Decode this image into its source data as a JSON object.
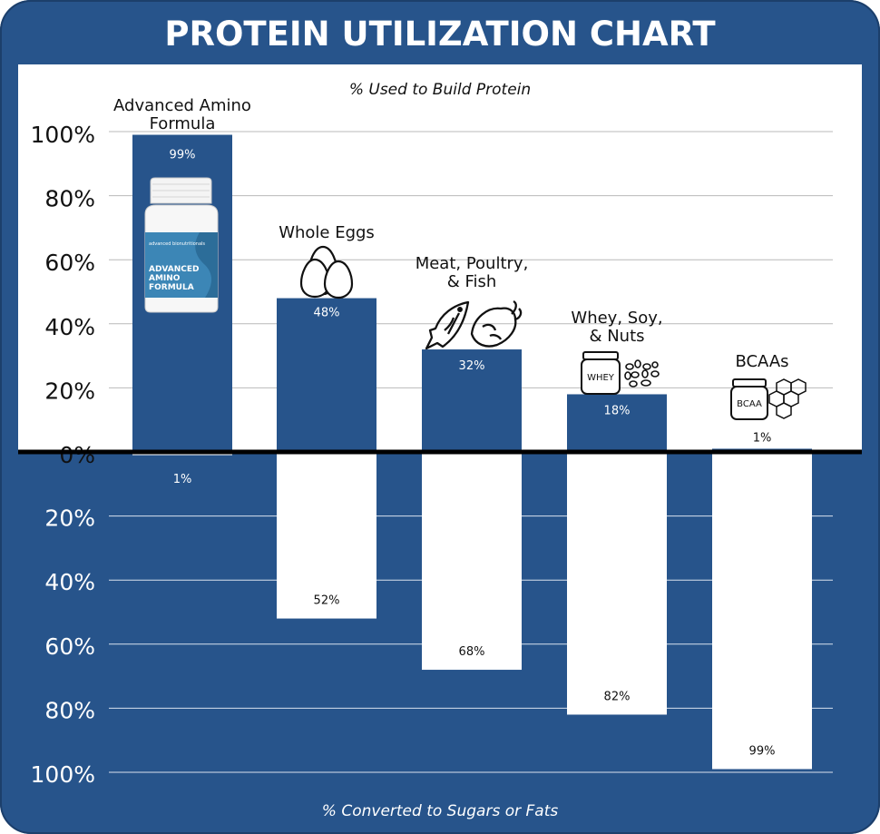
{
  "chart_data": {
    "type": "bar",
    "title": "PROTEIN UTILIZATION CHART",
    "upper_label": "% Used to Build Protein",
    "lower_label": "% Converted to Sugars or Fats",
    "categories": [
      {
        "lines": [
          "Advanced Amino",
          "Formula"
        ],
        "icon": "supplement-bottle-icon"
      },
      {
        "lines": [
          "Whole Eggs"
        ],
        "icon": "eggs-icon"
      },
      {
        "lines": [
          "Meat, Poultry,",
          "& Fish"
        ],
        "icon": "fish-and-chicken-icon"
      },
      {
        "lines": [
          "Whey, Soy,",
          "& Nuts"
        ],
        "icon": "whey-jar-and-nuts-icon"
      },
      {
        "lines": [
          "BCAAs"
        ],
        "icon": "bcaa-jar-icon"
      }
    ],
    "series": [
      {
        "values": [
          99,
          48,
          32,
          18,
          1
        ],
        "labels": [
          "99%",
          "48%",
          "32%",
          "18%",
          "1%"
        ]
      },
      {
        "values": [
          1,
          52,
          68,
          82,
          99
        ],
        "labels": [
          "1%",
          "52%",
          "68%",
          "82%",
          "99%"
        ]
      }
    ],
    "upper_ticks": [
      "0%",
      "20%",
      "40%",
      "60%",
      "80%",
      "100%"
    ],
    "lower_ticks": [
      "20%",
      "40%",
      "60%",
      "80%",
      "100%"
    ],
    "ylim": [
      -100,
      100
    ],
    "grid": true,
    "bottle_label": {
      "brand": "advanced bionutritionals",
      "product_lines": [
        "ADVANCED",
        "AMINO",
        "FORMULA"
      ]
    },
    "whey_icon_label": "WHEY",
    "bcaa_icon_label": "BCAA",
    "colors": {
      "navy": "#27548b",
      "white": "#ffffff",
      "grid_light": "#b9b9b9",
      "grid_dark": "#d8e1ee",
      "baseline": "#000000"
    }
  }
}
